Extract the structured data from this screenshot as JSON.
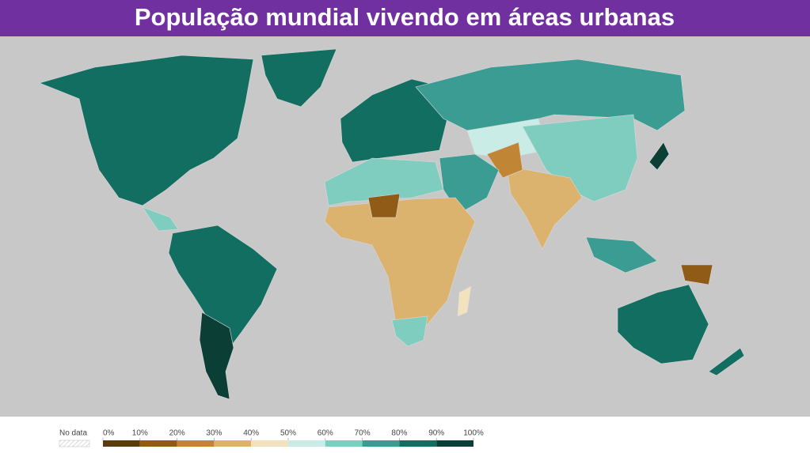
{
  "title": "População mundial vivendo em áreas urbanas",
  "legend": {
    "no_data_label": "No data",
    "lim": [
      0,
      100
    ],
    "ticks": [
      {
        "value": 0,
        "label": "0%"
      },
      {
        "value": 10,
        "label": "10%"
      },
      {
        "value": 20,
        "label": "20%"
      },
      {
        "value": 30,
        "label": "30%"
      },
      {
        "value": 40,
        "label": "40%"
      },
      {
        "value": 50,
        "label": "50%"
      },
      {
        "value": 60,
        "label": "60%"
      },
      {
        "value": 70,
        "label": "70%"
      },
      {
        "value": 80,
        "label": "80%"
      },
      {
        "value": 90,
        "label": "90%"
      },
      {
        "value": 100,
        "label": "100%"
      }
    ],
    "colors": [
      "#5c3a0e",
      "#8f5b17",
      "#c08535",
      "#dbb36e",
      "#f2e2bd",
      "#c9ece6",
      "#7fcdbf",
      "#3a9c92",
      "#136e62",
      "#0b3f36"
    ]
  }
}
